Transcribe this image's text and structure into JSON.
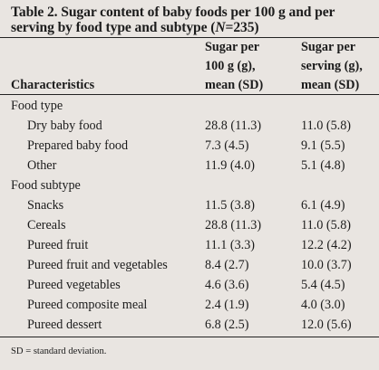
{
  "table": {
    "title_prefix": "Table 2. Sugar content of baby foods per 100 g and per serving by food type and subtype (",
    "title_italic": "N",
    "title_suffix": "=235)",
    "headers": {
      "characteristics": "Characteristics",
      "col1_line1": "Sugar per",
      "col1_line2": "100 g (g),",
      "col1_line3": "mean (SD)",
      "col2_line1": "Sugar per",
      "col2_line2": "serving (g),",
      "col2_line3": "mean (SD)"
    },
    "rows": [
      {
        "label": "Food type",
        "v1": "",
        "v2": ""
      },
      {
        "label": "Dry baby food",
        "v1": "28.8 (11.3)",
        "v2": "11.0 (5.8)"
      },
      {
        "label": "Prepared baby food",
        "v1": "7.3 (4.5)",
        "v2": "9.1 (5.5)"
      },
      {
        "label": "Other",
        "v1": "11.9 (4.0)",
        "v2": "5.1 (4.8)"
      },
      {
        "label": "Food subtype",
        "v1": "",
        "v2": ""
      },
      {
        "label": "Snacks",
        "v1": "11.5 (3.8)",
        "v2": "6.1 (4.9)"
      },
      {
        "label": "Cereals",
        "v1": "28.8 (11.3)",
        "v2": "11.0 (5.8)"
      },
      {
        "label": "Pureed fruit",
        "v1": "11.1 (3.3)",
        "v2": "12.2 (4.2)"
      },
      {
        "label": "Pureed fruit and vegetables",
        "v1": "8.4 (2.7)",
        "v2": "10.0 (3.7)"
      },
      {
        "label": "Pureed vegetables",
        "v1": "4.6 (3.6)",
        "v2": "5.4 (4.5)"
      },
      {
        "label": "Pureed composite meal",
        "v1": "2.4 (1.9)",
        "v2": "4.0 (3.0)"
      },
      {
        "label": "Pureed dessert",
        "v1": "6.8 (2.5)",
        "v2": "12.0 (5.6)"
      }
    ],
    "footnote": "SD = standard deviation."
  },
  "colors": {
    "background": "#e9e5e1",
    "text": "#1c1c1c",
    "rule": "#222222"
  }
}
